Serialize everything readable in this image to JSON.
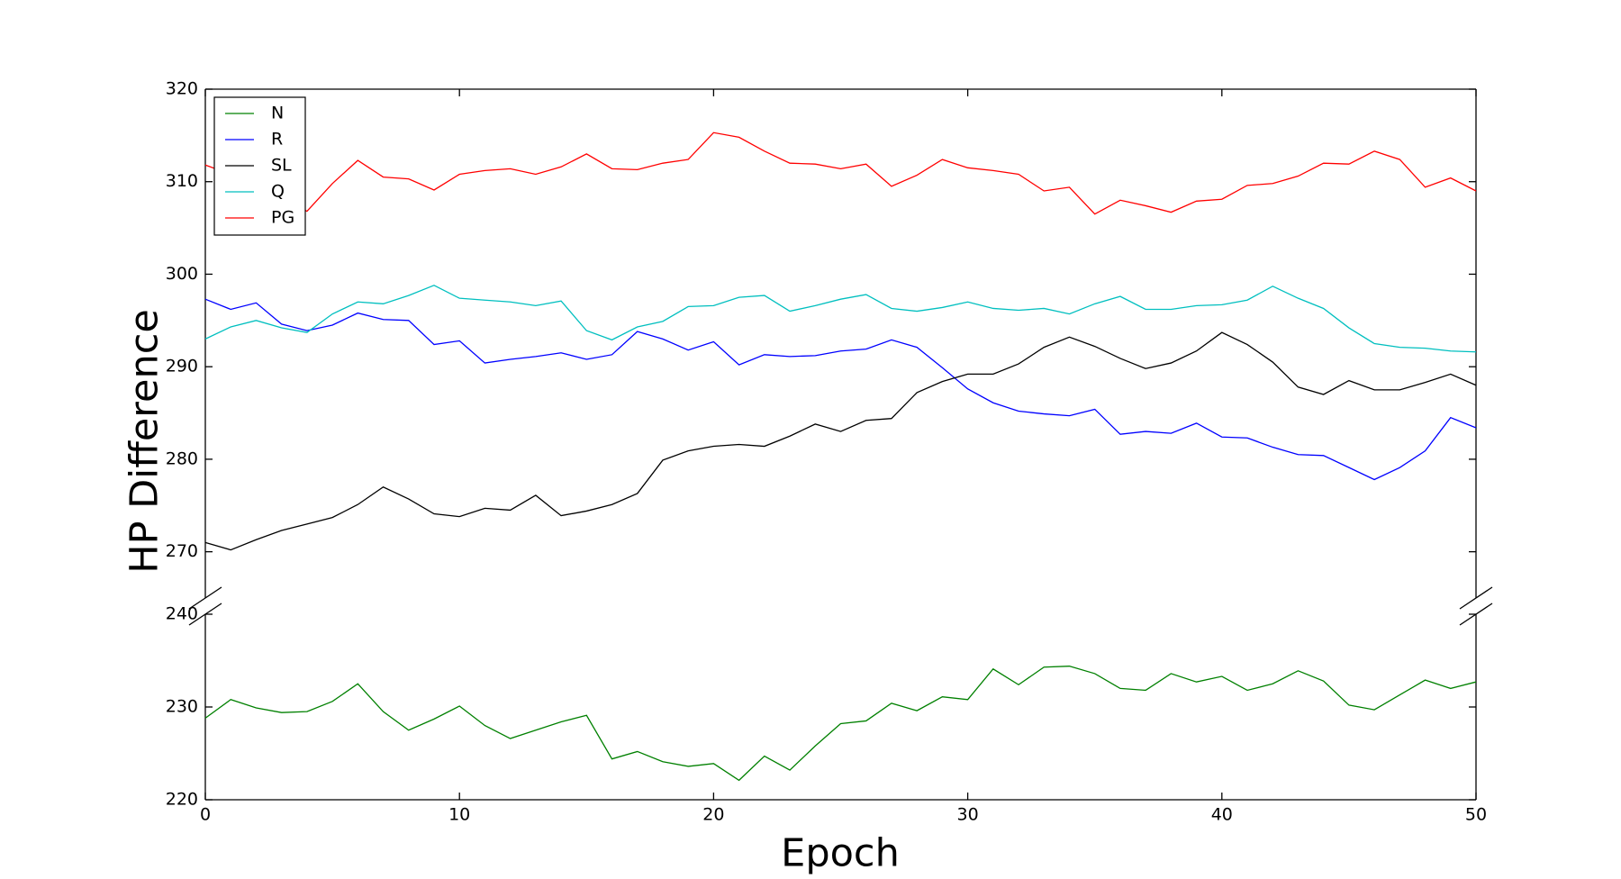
{
  "chart_data": {
    "type": "line",
    "xlabel": "Epoch",
    "ylabel": "HP Difference",
    "x": [
      0,
      1,
      2,
      3,
      4,
      5,
      6,
      7,
      8,
      9,
      10,
      11,
      12,
      13,
      14,
      15,
      16,
      17,
      18,
      19,
      20,
      21,
      22,
      23,
      24,
      25,
      26,
      27,
      28,
      29,
      30,
      31,
      32,
      33,
      34,
      35,
      36,
      37,
      38,
      39,
      40,
      41,
      42,
      43,
      44,
      45,
      46,
      47,
      48,
      49,
      50
    ],
    "xlim": [
      0,
      50
    ],
    "xticks": [
      0,
      10,
      20,
      30,
      40,
      50
    ],
    "ylim": [
      265,
      320
    ],
    "yticks": [
      270,
      280,
      290,
      300,
      310,
      320
    ],
    "y2lim": [
      220,
      240
    ],
    "y2ticks": [
      220,
      230,
      240
    ],
    "legend": "upper left",
    "series": [
      {
        "name": "N",
        "color": "#008000",
        "axis": "y2",
        "values": [
          228.8,
          230.8,
          229.9,
          229.4,
          229.5,
          230.6,
          232.5,
          229.5,
          227.5,
          228.7,
          230.1,
          228.0,
          226.6,
          227.5,
          228.4,
          229.1,
          224.4,
          225.2,
          224.1,
          223.6,
          223.9,
          222.1,
          224.7,
          223.2,
          225.8,
          228.2,
          228.5,
          230.4,
          229.6,
          231.1,
          230.8,
          234.1,
          232.4,
          234.3,
          234.4,
          233.6,
          232.0,
          231.8,
          233.6,
          232.7,
          233.3,
          231.8,
          232.5,
          233.9,
          232.8,
          230.2,
          229.7,
          231.3,
          232.9,
          232.0,
          232.7
        ]
      },
      {
        "name": "R",
        "color": "#0000ff",
        "values": [
          297.3,
          296.2,
          296.9,
          294.6,
          293.9,
          294.5,
          295.8,
          295.1,
          295.0,
          292.4,
          292.8,
          290.4,
          290.8,
          291.1,
          291.5,
          290.8,
          291.3,
          293.8,
          293.0,
          291.8,
          292.7,
          290.2,
          291.3,
          291.1,
          291.2,
          291.7,
          291.9,
          292.9,
          292.1,
          289.9,
          287.6,
          286.1,
          285.2,
          284.9,
          284.7,
          285.4,
          282.7,
          283.0,
          282.8,
          283.9,
          282.4,
          282.3,
          281.3,
          280.5,
          280.4,
          279.1,
          277.8,
          279.1,
          280.9,
          284.5,
          283.4
        ]
      },
      {
        "name": "SL",
        "color": "#000000",
        "values": [
          271.0,
          270.2,
          271.3,
          272.3,
          273.0,
          273.7,
          275.1,
          277.0,
          275.7,
          274.1,
          273.8,
          274.7,
          274.5,
          276.1,
          273.9,
          274.4,
          275.1,
          276.3,
          279.9,
          280.9,
          281.4,
          281.6,
          281.4,
          282.5,
          283.8,
          283.0,
          284.2,
          284.4,
          287.2,
          288.4,
          289.2,
          289.2,
          290.3,
          292.1,
          293.2,
          292.2,
          290.9,
          289.8,
          290.4,
          291.7,
          293.7,
          292.4,
          290.5,
          287.8,
          287.0,
          288.5,
          287.5,
          287.5,
          288.3,
          289.2,
          288.0
        ]
      },
      {
        "name": "Q",
        "color": "#00bfbf",
        "values": [
          293.0,
          294.3,
          295.0,
          294.2,
          293.7,
          295.7,
          297.0,
          296.8,
          297.7,
          298.8,
          297.4,
          297.2,
          297.0,
          296.6,
          297.1,
          293.9,
          292.9,
          294.3,
          294.9,
          296.5,
          296.6,
          297.5,
          297.7,
          296.0,
          296.6,
          297.3,
          297.8,
          296.3,
          296.0,
          296.4,
          297.0,
          296.3,
          296.1,
          296.3,
          295.7,
          296.8,
          297.6,
          296.2,
          296.2,
          296.6,
          296.7,
          297.2,
          298.7,
          297.4,
          296.3,
          294.2,
          292.5,
          292.1,
          292.0,
          291.7,
          291.6
        ]
      },
      {
        "name": "PG",
        "color": "#ff0000",
        "values": [
          311.8,
          310.8,
          309.3,
          308.2,
          306.8,
          309.8,
          312.3,
          310.5,
          310.3,
          309.1,
          310.8,
          311.2,
          311.4,
          310.8,
          311.6,
          313.0,
          311.4,
          311.3,
          312.0,
          312.4,
          315.3,
          314.8,
          313.3,
          312.0,
          311.9,
          311.4,
          311.9,
          309.5,
          310.7,
          312.4,
          311.5,
          311.2,
          310.8,
          309.0,
          309.4,
          306.5,
          308.0,
          307.4,
          306.7,
          307.9,
          308.1,
          309.6,
          309.8,
          310.6,
          312.0,
          311.9,
          313.3,
          312.4,
          309.4,
          310.4,
          309.0
        ]
      }
    ]
  }
}
